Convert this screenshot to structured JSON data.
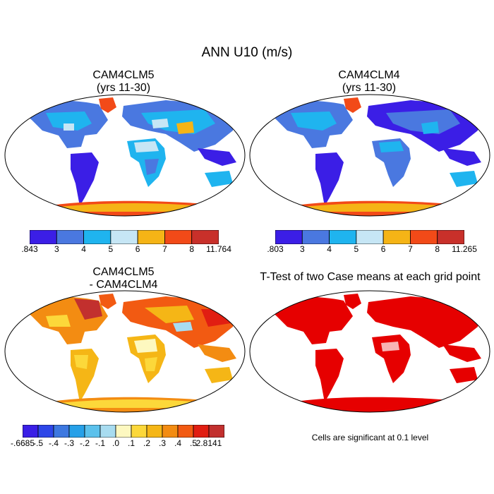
{
  "figure": {
    "title": "ANN U10 (m/s)"
  },
  "panels": {
    "p1": {
      "title_line1": "CAM4CLM5",
      "title_line2": "(yrs 11-30)"
    },
    "p2": {
      "title_line1": "CAM4CLM4",
      "title_line2": "(yrs 11-30)"
    },
    "p3": {
      "title_line1": "CAM4CLM5",
      "title_line2": "- CAM4CLM4"
    },
    "p4": {
      "title_line1": "T-Test of two Case means at each grid point",
      "note": "Cells are significant at 0.1 level"
    }
  },
  "colorbars": {
    "cb1": {
      "labels": [
        ".843",
        "3",
        "4",
        "5",
        "6",
        "7",
        "8",
        "11.764"
      ],
      "colors": [
        "#3b1ee6",
        "#4a78e0",
        "#1fb4ef",
        "#c6e6f5",
        "#f5b416",
        "#f24a18",
        "#c8302a"
      ]
    },
    "cb2": {
      "labels": [
        ".803",
        "3",
        "4",
        "5",
        "6",
        "7",
        "8",
        "11.265"
      ],
      "colors": [
        "#3b1ee6",
        "#4a78e0",
        "#1fb4ef",
        "#c6e6f5",
        "#f5b416",
        "#f24a18",
        "#c8302a"
      ]
    },
    "cb3": {
      "labels": [
        "-.6685",
        "-.5",
        "-.4",
        "-.3",
        "-.2",
        "-.1",
        ".0",
        ".1",
        ".2",
        ".3",
        ".4",
        ".5",
        "2.8141"
      ],
      "colors": [
        "#3a1fe6",
        "#2d46e8",
        "#3d78e0",
        "#26a0e8",
        "#5bc1ec",
        "#a8dcf0",
        "#fdf8c0",
        "#fcd83a",
        "#f5b616",
        "#f38c12",
        "#f25a12",
        "#e11e12",
        "#c2302e"
      ]
    }
  }
}
